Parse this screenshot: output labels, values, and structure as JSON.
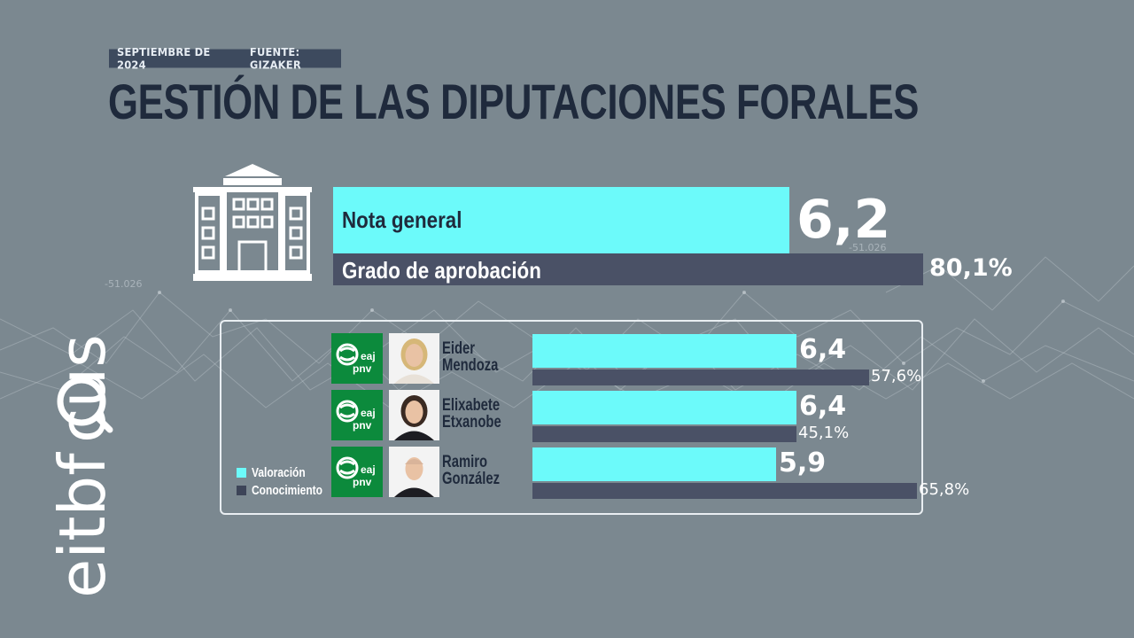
{
  "header": {
    "date": "SEPTIEMBRE DE 2024",
    "source": "FUENTE: GIZAKER"
  },
  "title": "GESTIÓN DE LAS DIPUTACIONES FORALES",
  "brand": {
    "logo_text": "eitbfocus",
    "logo_icon": "magnifier-icon"
  },
  "background_labels": [
    "-51.026",
    "-51.026"
  ],
  "summary": {
    "icon": "building-icon",
    "nota_label": "Nota general",
    "nota_value": "6,2",
    "aprobacion_label": "Grado de aprobación",
    "aprobacion_value": "80,1%"
  },
  "legend": {
    "valoracion": "Valoración",
    "conocimiento": "Conocimiento"
  },
  "party_logo_text": {
    "line1": "eaj",
    "line2": "pnv"
  },
  "candidates": [
    {
      "name_first": "Eider",
      "name_last": "Mendoza",
      "valoracion": "6,4",
      "conocimiento": "57,6%"
    },
    {
      "name_first": "Elixabete",
      "name_last": "Etxanobe",
      "valoracion": "6,4",
      "conocimiento": "45,1%"
    },
    {
      "name_first": "Ramiro",
      "name_last": "González",
      "valoracion": "5,9",
      "conocimiento": "65,8%"
    }
  ],
  "colors": {
    "background": "#7b8890",
    "valoracion": "#6cfafa",
    "conocimiento": "#4a5166",
    "title": "#1f2a3c",
    "party_green": "#0c8a3c"
  },
  "chart_data": [
    {
      "type": "bar",
      "categories": [
        "Nota general",
        "Grado de aprobación"
      ],
      "values": [
        6.2,
        80.1
      ],
      "units": [
        "score (0-10)",
        "%"
      ]
    },
    {
      "type": "bar",
      "categories": [
        "Eider Mendoza",
        "Elixabete Etxanobe",
        "Ramiro González"
      ],
      "series": [
        {
          "name": "Valoración",
          "values": [
            6.4,
            6.4,
            5.9
          ]
        },
        {
          "name": "Conocimiento",
          "values": [
            57.6,
            45.1,
            65.8
          ]
        }
      ],
      "legend": "bottom-left"
    }
  ]
}
